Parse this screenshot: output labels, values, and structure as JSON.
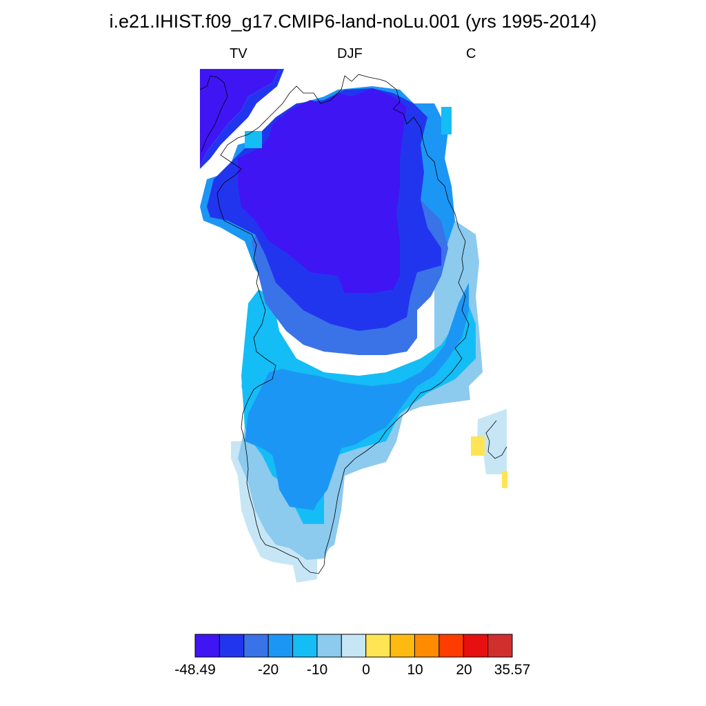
{
  "title": "i.e21.IHIST.f09_g17.CMIP6-land-noLu.001 (yrs 1995-2014)",
  "subtitle_left": "TV",
  "subtitle_center": "DJF",
  "subtitle_right": "C",
  "colorbar": {
    "colors": [
      "#3f15f4",
      "#2235ee",
      "#3a72e8",
      "#1c96f5",
      "#14bdf5",
      "#8ccaee",
      "#c6e6f6",
      "#ffe453",
      "#ffba10",
      "#ff8b00",
      "#ff3c00",
      "#e70f0f",
      "#d12e2e"
    ],
    "tick_labels": [
      "-48.49",
      "-20",
      "-10",
      "0",
      "10",
      "20",
      "35.57"
    ]
  },
  "colors": {
    "coastline": "#000000",
    "background": "#ffffff"
  }
}
